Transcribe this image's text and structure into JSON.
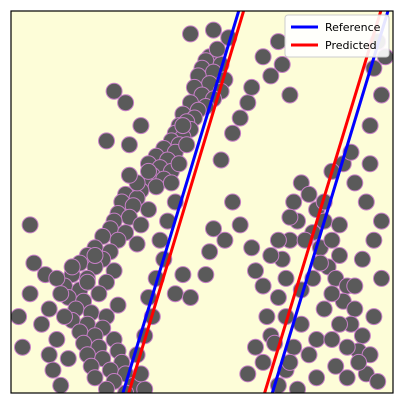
{
  "chart_data": {
    "type": "scatter",
    "title": "",
    "xlabel": "",
    "ylabel": "",
    "xlim": [
      0,
      1
    ],
    "ylim": [
      0,
      1
    ],
    "grid": false,
    "legend_position": "top-right",
    "background_color": "#fdfdd8",
    "point_color": "#5a5a5a",
    "point_edge_color": "#c77fc7",
    "series": [
      {
        "name": "Reference",
        "kind": "line",
        "color": "#0000ff",
        "segments": [
          {
            "x": [
              0.293,
              0.596
            ],
            "y": [
              0.0,
              1.0
            ]
          },
          {
            "x": [
              0.684,
              0.987
            ],
            "y": [
              0.0,
              1.0
            ]
          }
        ]
      },
      {
        "name": "Predicted",
        "kind": "line",
        "color": "#ff0000",
        "segments": [
          {
            "x": [
              0.308,
              0.609
            ],
            "y": [
              0.0,
              1.0
            ]
          },
          {
            "x": [
              0.664,
              0.968
            ],
            "y": [
              0.0,
              1.0
            ]
          }
        ]
      }
    ],
    "points": [
      [
        0.52,
        0.88
      ],
      [
        0.51,
        0.87
      ],
      [
        0.55,
        0.86
      ],
      [
        0.5,
        0.85
      ],
      [
        0.53,
        0.84
      ],
      [
        0.49,
        0.83
      ],
      [
        0.56,
        0.82
      ],
      [
        0.52,
        0.81
      ],
      [
        0.48,
        0.8
      ],
      [
        0.55,
        0.79
      ],
      [
        0.5,
        0.78
      ],
      [
        0.53,
        0.77
      ],
      [
        0.47,
        0.76
      ],
      [
        0.51,
        0.75
      ],
      [
        0.49,
        0.74
      ],
      [
        0.45,
        0.73
      ],
      [
        0.48,
        0.72
      ],
      [
        0.46,
        0.71
      ],
      [
        0.44,
        0.7
      ],
      [
        0.47,
        0.69
      ],
      [
        0.43,
        0.68
      ],
      [
        0.45,
        0.67
      ],
      [
        0.42,
        0.66
      ],
      [
        0.44,
        0.65
      ],
      [
        0.4,
        0.64
      ],
      [
        0.43,
        0.63
      ],
      [
        0.38,
        0.62
      ],
      [
        0.41,
        0.61
      ],
      [
        0.36,
        0.6
      ],
      [
        0.39,
        0.59
      ],
      [
        0.42,
        0.58
      ],
      [
        0.37,
        0.57
      ],
      [
        0.4,
        0.56
      ],
      [
        0.35,
        0.55
      ],
      [
        0.38,
        0.54
      ],
      [
        0.34,
        0.53
      ],
      [
        0.3,
        0.52
      ],
      [
        0.33,
        0.51
      ],
      [
        0.29,
        0.5
      ],
      [
        0.32,
        0.49
      ],
      [
        0.36,
        0.48
      ],
      [
        0.28,
        0.47
      ],
      [
        0.31,
        0.46
      ],
      [
        0.27,
        0.45
      ],
      [
        0.34,
        0.44
      ],
      [
        0.26,
        0.43
      ],
      [
        0.3,
        0.42
      ],
      [
        0.24,
        0.41
      ],
      [
        0.28,
        0.4
      ],
      [
        0.33,
        0.39
      ],
      [
        0.22,
        0.38
      ],
      [
        0.26,
        0.37
      ],
      [
        0.2,
        0.36
      ],
      [
        0.24,
        0.35
      ],
      [
        0.18,
        0.34
      ],
      [
        0.22,
        0.33
      ],
      [
        0.27,
        0.32
      ],
      [
        0.16,
        0.31
      ],
      [
        0.2,
        0.3
      ],
      [
        0.25,
        0.29
      ],
      [
        0.14,
        0.28
      ],
      [
        0.18,
        0.27
      ],
      [
        0.23,
        0.26
      ],
      [
        0.15,
        0.25
      ],
      [
        0.19,
        0.24
      ],
      [
        0.28,
        0.23
      ],
      [
        0.17,
        0.22
      ],
      [
        0.21,
        0.21
      ],
      [
        0.25,
        0.2
      ],
      [
        0.16,
        0.19
      ],
      [
        0.2,
        0.18
      ],
      [
        0.24,
        0.17
      ],
      [
        0.18,
        0.16
      ],
      [
        0.22,
        0.15
      ],
      [
        0.27,
        0.14
      ],
      [
        0.19,
        0.13
      ],
      [
        0.23,
        0.12
      ],
      [
        0.28,
        0.11
      ],
      [
        0.2,
        0.1
      ],
      [
        0.24,
        0.09
      ],
      [
        0.29,
        0.08
      ],
      [
        0.21,
        0.07
      ],
      [
        0.26,
        0.06
      ],
      [
        0.3,
        0.05
      ],
      [
        0.22,
        0.04
      ],
      [
        0.27,
        0.03
      ],
      [
        0.32,
        0.02
      ],
      [
        0.25,
        0.01
      ],
      [
        0.3,
        0.0
      ],
      [
        0.35,
        0.01
      ],
      [
        0.34,
        0.05
      ],
      [
        0.33,
        0.1
      ],
      [
        0.35,
        0.15
      ],
      [
        0.37,
        0.2
      ],
      [
        0.36,
        0.25
      ],
      [
        0.38,
        0.3
      ],
      [
        0.4,
        0.35
      ],
      [
        0.39,
        0.4
      ],
      [
        0.41,
        0.45
      ],
      [
        0.43,
        0.5
      ],
      [
        0.42,
        0.55
      ],
      [
        0.44,
        0.6
      ],
      [
        0.46,
        0.65
      ],
      [
        0.45,
        0.7
      ],
      [
        0.05,
        0.44
      ],
      [
        0.06,
        0.34
      ],
      [
        0.09,
        0.31
      ],
      [
        0.12,
        0.3
      ],
      [
        0.16,
        0.33
      ],
      [
        0.2,
        0.29
      ],
      [
        0.22,
        0.36
      ],
      [
        0.13,
        0.26
      ],
      [
        0.1,
        0.22
      ],
      [
        0.14,
        0.2
      ],
      [
        0.1,
        0.1
      ],
      [
        0.11,
        0.06
      ],
      [
        0.13,
        0.02
      ],
      [
        0.12,
        0.14
      ],
      [
        0.15,
        0.09
      ],
      [
        0.43,
        0.26
      ],
      [
        0.45,
        0.31
      ],
      [
        0.47,
        0.25
      ],
      [
        0.52,
        0.37
      ],
      [
        0.53,
        0.43
      ],
      [
        0.58,
        0.68
      ],
      [
        0.55,
        0.61
      ],
      [
        0.62,
        0.76
      ],
      [
        0.6,
        0.72
      ],
      [
        0.63,
        0.8
      ],
      [
        0.66,
        0.88
      ],
      [
        0.68,
        0.83
      ],
      [
        0.7,
        0.92
      ],
      [
        0.71,
        0.86
      ],
      [
        0.73,
        0.78
      ],
      [
        0.3,
        0.76
      ],
      [
        0.27,
        0.79
      ],
      [
        0.25,
        0.66
      ],
      [
        0.31,
        0.65
      ],
      [
        0.34,
        0.7
      ],
      [
        0.36,
        0.58
      ],
      [
        0.47,
        0.94
      ],
      [
        0.53,
        0.95
      ],
      [
        0.54,
        0.9
      ],
      [
        0.57,
        0.93
      ],
      [
        0.33,
        0.55
      ],
      [
        0.31,
        0.57
      ],
      [
        0.62,
        0.05
      ],
      [
        0.64,
        0.12
      ],
      [
        0.66,
        0.08
      ],
      [
        0.68,
        0.15
      ],
      [
        0.67,
        0.2
      ],
      [
        0.7,
        0.25
      ],
      [
        0.72,
        0.3
      ],
      [
        0.71,
        0.35
      ],
      [
        0.73,
        0.4
      ],
      [
        0.75,
        0.45
      ],
      [
        0.74,
        0.5
      ],
      [
        0.76,
        0.55
      ],
      [
        0.78,
        0.52
      ],
      [
        0.8,
        0.48
      ],
      [
        0.82,
        0.45
      ],
      [
        0.79,
        0.42
      ],
      [
        0.81,
        0.38
      ],
      [
        0.84,
        0.4
      ],
      [
        0.86,
        0.36
      ],
      [
        0.83,
        0.33
      ],
      [
        0.85,
        0.3
      ],
      [
        0.88,
        0.28
      ],
      [
        0.87,
        0.24
      ],
      [
        0.9,
        0.22
      ],
      [
        0.89,
        0.18
      ],
      [
        0.92,
        0.15
      ],
      [
        0.91,
        0.11
      ],
      [
        0.94,
        0.1
      ],
      [
        0.93,
        0.05
      ],
      [
        0.96,
        0.03
      ],
      [
        0.78,
        0.1
      ],
      [
        0.8,
        0.14
      ],
      [
        0.76,
        0.18
      ],
      [
        0.82,
        0.22
      ],
      [
        0.84,
        0.26
      ],
      [
        0.79,
        0.3
      ],
      [
        0.74,
        0.12
      ],
      [
        0.72,
        0.06
      ],
      [
        0.7,
        0.02
      ],
      [
        0.75,
        0.01
      ],
      [
        0.8,
        0.04
      ],
      [
        0.85,
        0.07
      ],
      [
        0.88,
        0.12
      ],
      [
        0.86,
        0.18
      ],
      [
        0.9,
        0.28
      ],
      [
        0.92,
        0.35
      ],
      [
        0.95,
        0.4
      ],
      [
        0.97,
        0.45
      ],
      [
        0.93,
        0.5
      ],
      [
        0.9,
        0.55
      ],
      [
        0.87,
        0.6
      ],
      [
        0.84,
        0.58
      ],
      [
        0.89,
        0.63
      ],
      [
        0.94,
        0.7
      ],
      [
        0.97,
        0.78
      ],
      [
        0.95,
        0.85
      ],
      [
        0.96,
        0.92
      ],
      [
        0.98,
        0.88
      ],
      [
        0.66,
        0.28
      ],
      [
        0.64,
        0.32
      ],
      [
        0.63,
        0.38
      ],
      [
        0.68,
        0.36
      ],
      [
        0.7,
        0.4
      ],
      [
        0.73,
        0.46
      ],
      [
        0.77,
        0.4
      ],
      [
        0.81,
        0.34
      ],
      [
        0.76,
        0.27
      ],
      [
        0.72,
        0.2
      ],
      [
        0.69,
        0.13
      ],
      [
        0.73,
        0.08
      ],
      [
        0.84,
        0.14
      ],
      [
        0.88,
        0.04
      ],
      [
        0.91,
        0.08
      ],
      [
        0.95,
        0.2
      ],
      [
        0.97,
        0.3
      ],
      [
        0.94,
        0.6
      ],
      [
        0.82,
        0.5
      ],
      [
        0.86,
        0.44
      ],
      [
        0.58,
        0.5
      ],
      [
        0.6,
        0.44
      ],
      [
        0.56,
        0.4
      ],
      [
        0.51,
        0.31
      ],
      [
        0.05,
        0.26
      ],
      [
        0.08,
        0.18
      ],
      [
        0.02,
        0.2
      ],
      [
        0.03,
        0.12
      ]
    ]
  }
}
